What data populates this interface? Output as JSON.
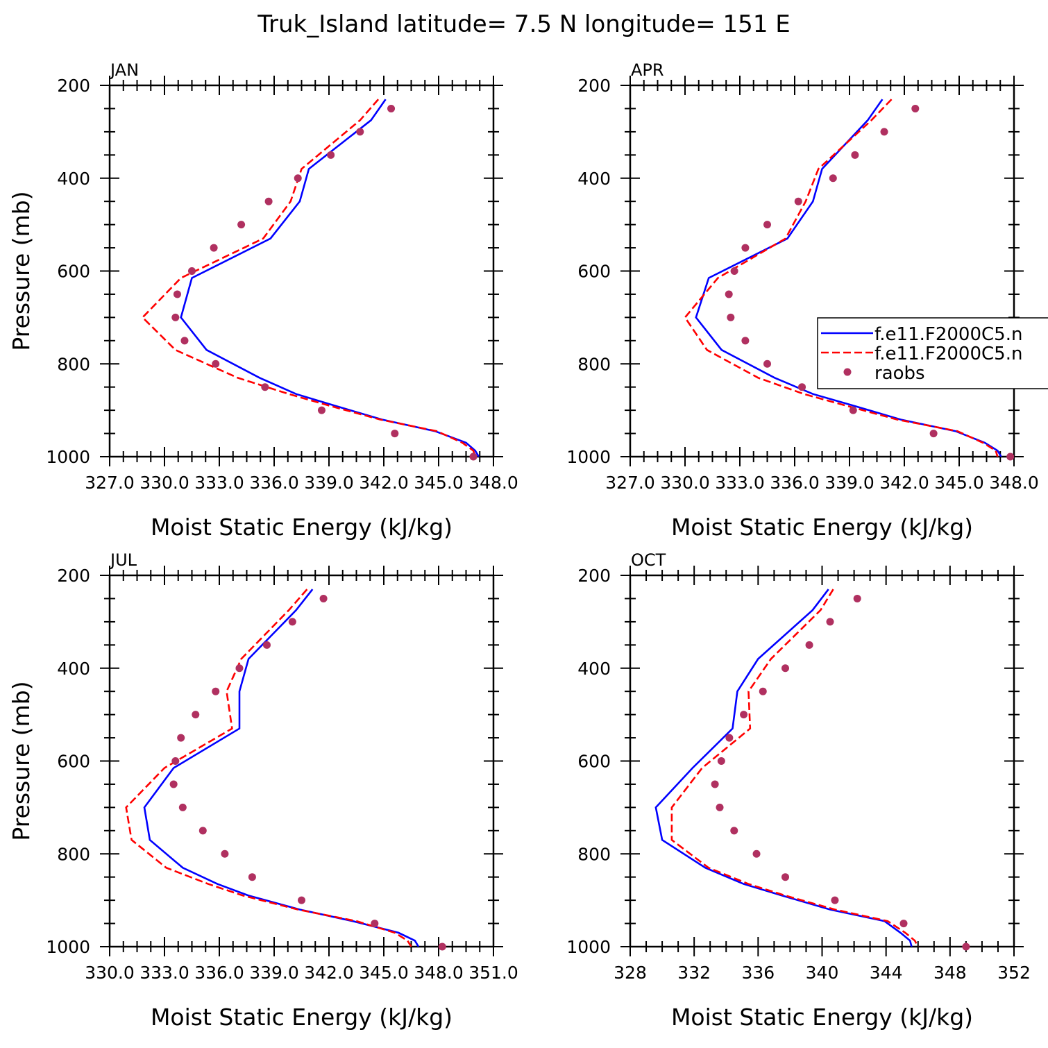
{
  "title": "Truk_Island  latitude= 7.5 N longitude= 151 E",
  "colors": {
    "model1": "#0000ff",
    "model2": "#ff0000",
    "obs": "#b03060",
    "axis": "#000000"
  },
  "legend": {
    "entries": [
      "f.e11.F2000C5.n",
      "f.e11.F2000C5.n",
      "raobs"
    ],
    "panel_index": 1
  },
  "chart_data": [
    {
      "type": "line",
      "title": "JAN",
      "xlabel": "Moist Static Energy (kJ/kg)",
      "ylabel": "Pressure (mb)",
      "xlim": [
        327,
        348
      ],
      "ylim": [
        200,
        1000
      ],
      "xticks": [
        327,
        330,
        333,
        336,
        339,
        342,
        345,
        348
      ],
      "xtick_labels": [
        "327.0",
        "330.0",
        "333.0",
        "336.0",
        "339.0",
        "342.0",
        "345.0",
        "348.0"
      ],
      "yticks": [
        200,
        400,
        600,
        800,
        1000
      ],
      "ytick_labels": [
        "200",
        "400",
        "600",
        "800",
        "1000"
      ],
      "series": [
        {
          "name": "f.e11.F2000C5.n (solid)",
          "style": "solid",
          "p": [
            230,
            275,
            380,
            450,
            530,
            615,
            700,
            770,
            830,
            865,
            890,
            920,
            945,
            970,
            987,
            1000
          ],
          "values": [
            342.1,
            341.3,
            337.9,
            337.4,
            335.8,
            331.5,
            330.9,
            332.3,
            335.2,
            337.2,
            339.3,
            341.9,
            344.8,
            346.5,
            347.0,
            347.2
          ]
        },
        {
          "name": "f.e11.F2000C5.n (dashed)",
          "style": "dashed",
          "p": [
            230,
            275,
            380,
            450,
            530,
            615,
            700,
            770,
            830,
            865,
            890,
            920,
            945,
            970,
            987,
            1000
          ],
          "values": [
            341.7,
            340.7,
            337.5,
            336.9,
            335.4,
            330.9,
            328.8,
            330.6,
            334.0,
            336.8,
            339.0,
            341.8,
            344.9,
            346.3,
            346.9,
            347.0
          ]
        },
        {
          "name": "raobs",
          "style": "dots",
          "p": [
            250,
            300,
            350,
            400,
            450,
            500,
            550,
            600,
            650,
            700,
            750,
            800,
            850,
            900,
            950,
            1000
          ],
          "values": [
            342.4,
            340.7,
            339.1,
            337.3,
            335.7,
            334.2,
            332.7,
            331.5,
            330.7,
            330.6,
            331.1,
            332.8,
            335.5,
            338.6,
            342.6,
            346.9
          ]
        }
      ]
    },
    {
      "type": "line",
      "title": "APR",
      "xlabel": "Moist Static Energy (kJ/kg)",
      "ylabel": "",
      "xlim": [
        327,
        348
      ],
      "ylim": [
        200,
        1000
      ],
      "xticks": [
        327,
        330,
        333,
        336,
        339,
        342,
        345,
        348
      ],
      "xtick_labels": [
        "327.0",
        "330.0",
        "333.0",
        "336.0",
        "339.0",
        "342.0",
        "345.0",
        "348.0"
      ],
      "yticks": [
        200,
        400,
        600,
        800,
        1000
      ],
      "ytick_labels": [
        "200",
        "400",
        "600",
        "800",
        "1000"
      ],
      "series": [
        {
          "name": "f.e11.F2000C5.n (solid)",
          "style": "solid",
          "p": [
            230,
            275,
            380,
            450,
            530,
            615,
            700,
            770,
            830,
            865,
            890,
            920,
            945,
            970,
            987,
            1000
          ],
          "values": [
            340.8,
            340.0,
            337.5,
            337.0,
            335.6,
            331.3,
            330.6,
            332.0,
            334.9,
            337.0,
            339.2,
            341.8,
            344.8,
            346.4,
            347.1,
            347.3
          ]
        },
        {
          "name": "f.e11.F2000C5.n (dashed)",
          "style": "dashed",
          "p": [
            230,
            275,
            380,
            450,
            530,
            615,
            700,
            770,
            830,
            865,
            890,
            920,
            945,
            970,
            987,
            1000
          ],
          "values": [
            341.3,
            340.2,
            337.3,
            336.6,
            335.5,
            331.8,
            330.0,
            331.2,
            334.0,
            336.5,
            338.8,
            341.6,
            344.9,
            346.3,
            347.0,
            347.1
          ]
        },
        {
          "name": "raobs",
          "style": "dots",
          "p": [
            250,
            300,
            350,
            400,
            450,
            500,
            550,
            600,
            650,
            700,
            750,
            800,
            850,
            900,
            950,
            1000
          ],
          "values": [
            342.6,
            340.9,
            339.3,
            338.1,
            336.2,
            334.5,
            333.3,
            332.7,
            332.4,
            332.5,
            333.3,
            334.5,
            336.4,
            339.2,
            343.6,
            347.8
          ]
        }
      ]
    },
    {
      "type": "line",
      "title": "JUL",
      "xlabel": "Moist Static Energy (kJ/kg)",
      "ylabel": "Pressure (mb)",
      "xlim": [
        330,
        351
      ],
      "ylim": [
        200,
        1000
      ],
      "xticks": [
        330,
        333,
        336,
        339,
        342,
        345,
        348,
        351
      ],
      "xtick_labels": [
        "330.0",
        "333.0",
        "336.0",
        "339.0",
        "342.0",
        "345.0",
        "348.0",
        "351.0"
      ],
      "yticks": [
        200,
        400,
        600,
        800,
        1000
      ],
      "ytick_labels": [
        "200",
        "400",
        "600",
        "800",
        "1000"
      ],
      "series": [
        {
          "name": "f.e11.F2000C5.n (solid)",
          "style": "solid",
          "p": [
            230,
            275,
            380,
            450,
            530,
            615,
            700,
            770,
            830,
            865,
            890,
            920,
            945,
            970,
            987,
            1000
          ],
          "values": [
            341.1,
            340.2,
            337.6,
            337.1,
            337.1,
            333.5,
            331.9,
            332.2,
            334.0,
            335.9,
            337.6,
            340.4,
            343.3,
            345.8,
            346.7,
            346.9
          ]
        },
        {
          "name": "f.e11.F2000C5.n (dashed)",
          "style": "dashed",
          "p": [
            230,
            275,
            380,
            450,
            530,
            615,
            700,
            770,
            830,
            865,
            890,
            920,
            945,
            970,
            987,
            1000
          ],
          "values": [
            340.8,
            339.8,
            337.2,
            336.4,
            336.7,
            333.0,
            330.9,
            331.2,
            333.1,
            335.4,
            337.3,
            340.3,
            343.5,
            345.6,
            346.3,
            346.5
          ]
        },
        {
          "name": "raobs",
          "style": "dots",
          "p": [
            250,
            300,
            350,
            400,
            450,
            500,
            550,
            600,
            650,
            700,
            750,
            800,
            850,
            900,
            950,
            1000
          ],
          "values": [
            341.7,
            340.0,
            338.6,
            337.1,
            335.8,
            334.7,
            333.9,
            333.6,
            333.5,
            334.0,
            335.1,
            336.3,
            337.8,
            340.5,
            344.5,
            348.2
          ]
        }
      ]
    },
    {
      "type": "line",
      "title": "OCT",
      "xlabel": "Moist Static Energy (kJ/kg)",
      "ylabel": "",
      "xlim": [
        328,
        352
      ],
      "ylim": [
        200,
        1000
      ],
      "xticks": [
        328,
        332,
        336,
        340,
        344,
        348,
        352
      ],
      "xtick_labels": [
        "328",
        "332",
        "336",
        "340",
        "344",
        "348",
        "352"
      ],
      "yticks": [
        200,
        400,
        600,
        800,
        1000
      ],
      "ytick_labels": [
        "200",
        "400",
        "600",
        "800",
        "1000"
      ],
      "series": [
        {
          "name": "f.e11.F2000C5.n (solid)",
          "style": "solid",
          "p": [
            230,
            275,
            380,
            450,
            530,
            615,
            700,
            770,
            830,
            865,
            890,
            920,
            945,
            970,
            987,
            1000
          ],
          "values": [
            340.4,
            339.4,
            336.0,
            334.7,
            334.4,
            331.9,
            329.6,
            330.0,
            332.7,
            335.1,
            337.5,
            340.5,
            343.9,
            344.9,
            345.5,
            345.6
          ]
        },
        {
          "name": "f.e11.F2000C5.n (dashed)",
          "style": "dashed",
          "p": [
            230,
            275,
            380,
            450,
            530,
            615,
            700,
            770,
            830,
            865,
            890,
            920,
            945,
            970,
            987,
            1000
          ],
          "values": [
            340.7,
            339.9,
            336.8,
            335.4,
            335.5,
            332.5,
            330.6,
            330.6,
            332.9,
            335.4,
            337.7,
            340.8,
            344.1,
            345.2,
            345.8,
            346.0
          ]
        },
        {
          "name": "raobs",
          "style": "dots",
          "p": [
            250,
            300,
            350,
            400,
            450,
            500,
            550,
            600,
            650,
            700,
            750,
            800,
            850,
            900,
            950,
            1000
          ],
          "values": [
            342.2,
            340.5,
            339.2,
            337.7,
            336.3,
            335.1,
            334.2,
            333.7,
            333.3,
            333.6,
            334.5,
            335.9,
            337.7,
            340.8,
            345.1,
            349.0
          ]
        }
      ]
    }
  ]
}
